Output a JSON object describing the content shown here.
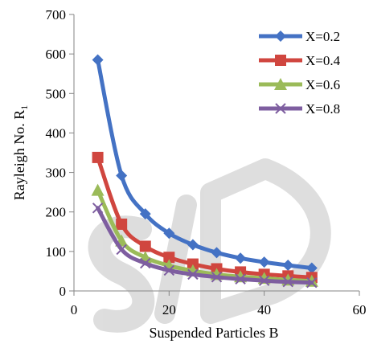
{
  "chart_data": {
    "type": "line",
    "xlabel": "Suspended Particles B",
    "ylabel": "Rayleigh No. R",
    "ylabel_subscript": "1",
    "xlim": [
      0,
      60
    ],
    "ylim": [
      0,
      700
    ],
    "xticks": [
      0,
      20,
      40,
      60
    ],
    "yticks": [
      0,
      100,
      200,
      300,
      400,
      500,
      600,
      700
    ],
    "grid": false,
    "legend_position": "top-right",
    "x": [
      5,
      10,
      15,
      20,
      25,
      30,
      35,
      40,
      45,
      50
    ],
    "series": [
      {
        "name": "X=0.2",
        "color": "#4472C4",
        "marker": "diamond",
        "values": [
          585,
          292,
          195,
          146,
          117,
          97,
          83,
          73,
          65,
          58
        ]
      },
      {
        "name": "X=0.4",
        "color": "#D0463F",
        "marker": "square",
        "values": [
          338,
          169,
          113,
          85,
          68,
          56,
          48,
          42,
          38,
          34
        ]
      },
      {
        "name": "X=0.6",
        "color": "#9BBB59",
        "marker": "triangle",
        "values": [
          255,
          127,
          85,
          64,
          51,
          42,
          36,
          32,
          28,
          25
        ]
      },
      {
        "name": "X=0.8",
        "color": "#7E5EA0",
        "marker": "x",
        "values": [
          210,
          105,
          70,
          52,
          42,
          35,
          30,
          26,
          23,
          21
        ]
      }
    ]
  }
}
